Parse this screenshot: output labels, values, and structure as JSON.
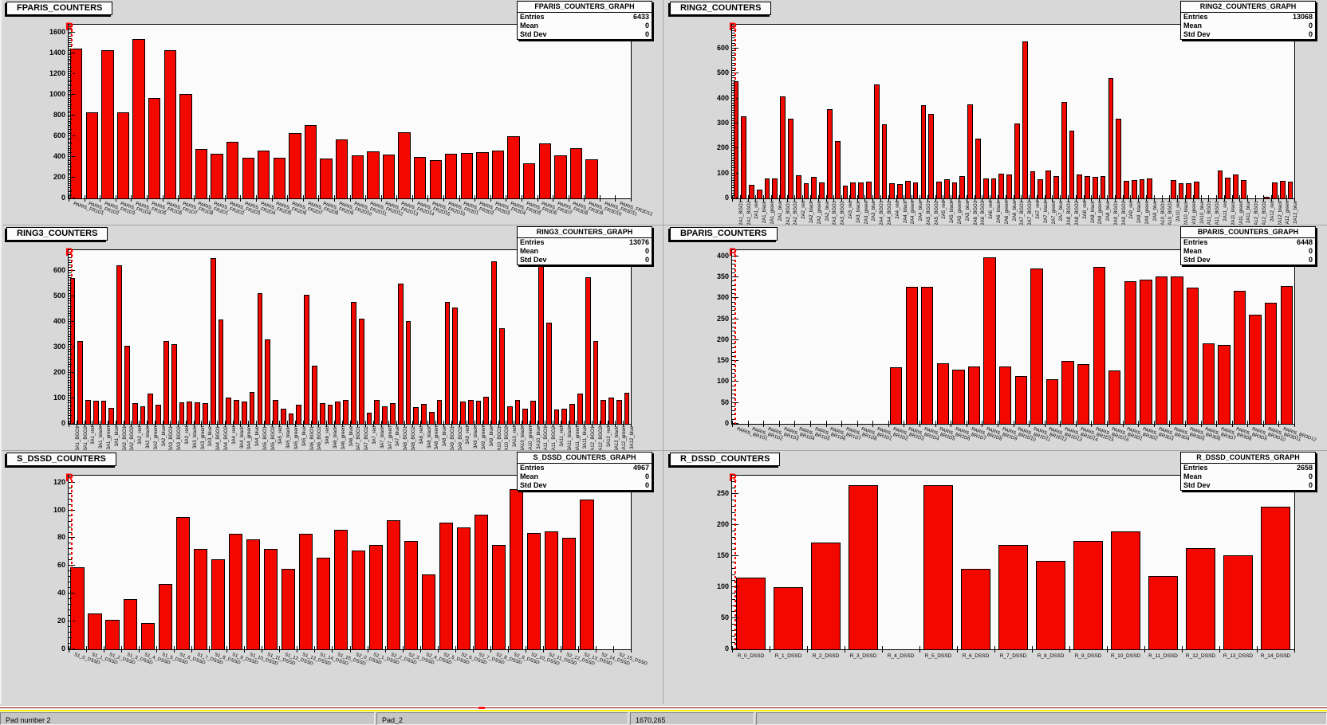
{
  "colors": {
    "bar_fill": "#f30800",
    "bar_border": "#000000",
    "marker_red": "#ff0000",
    "pad_background": "#d8d8d8",
    "frame_background": "#fbfbfb",
    "yellow_separator": "#f4ee00",
    "maroon_separator": "#8b0000"
  },
  "status_bar": {
    "cells": [
      "Pad number 2",
      "Pad_2",
      "1670,265",
      ""
    ]
  },
  "chart_data": [
    {
      "type": "bar",
      "title": "FPARIS_COUNTERS",
      "corner_marker": "R",
      "stats": {
        "title": "FPARIS_COUNTERS_GRAPH",
        "entries_label": "Entries",
        "entries": "6433",
        "mean_label": "Mean",
        "mean": "0",
        "stddev_label": "Std Dev",
        "stddev": "0"
      },
      "xlabel": "",
      "ylabel": "",
      "ylim": [
        0,
        1675
      ],
      "yticks": [
        0,
        200,
        400,
        600,
        800,
        1000,
        1200,
        1400,
        1600
      ],
      "minor_step": 20,
      "labels_orientation": "slant",
      "categories": [
        "PARIS_FR1D1",
        "PARIS_FR1D2",
        "PARIS_FR1D3",
        "PARIS_FR1D4",
        "PARIS_FR1D5",
        "PARIS_FR1D6",
        "PARIS_FR1D7",
        "PARIS_FR1D8",
        "PARIS_FR2D1",
        "PARIS_FR2D2",
        "PARIS_FR2D3",
        "PARIS_FR2D4",
        "PARIS_FR2D5",
        "PARIS_FR2D6",
        "PARIS_FR2D7",
        "PARIS_FR2D8",
        "PARIS_FR2D9",
        "PARIS_FR2D10",
        "PARIS_FR2D11",
        "PARIS_FR2D12",
        "PARIS_FR2D13",
        "PARIS_FR2D14",
        "PARIS_FR2D15",
        "PARIS_FR2D16",
        "PARIS_FR3D1",
        "PARIS_FR3D2",
        "PARIS_FR3D3",
        "PARIS_FR3D4",
        "PARIS_FR3D5",
        "PARIS_FR3D6",
        "PARIS_FR3D7",
        "PARIS_FR3D8",
        "PARIS_FR3D9",
        "PARIS_FR3D10",
        "PARIS_FR3D11",
        "PARIS_FR3D12"
      ],
      "values": [
        1448,
        828,
        1432,
        828,
        1540,
        965,
        1432,
        1008,
        475,
        428,
        545,
        393,
        460,
        393,
        628,
        705,
        388,
        572,
        413,
        455,
        420,
        635,
        400,
        368,
        428,
        440,
        448,
        462,
        600,
        340,
        530,
        413,
        483,
        375,
        0,
        0
      ]
    },
    {
      "type": "bar",
      "title": "RING2_COUNTERS",
      "corner_marker": "R",
      "stats": {
        "title": "RING2_COUNTERS_GRAPH",
        "entries_label": "Entries",
        "entries": "13068",
        "mean_label": "Mean",
        "mean": "0",
        "stddev_label": "Std Dev",
        "stddev": "0"
      },
      "xlabel": "",
      "ylabel": "",
      "ylim": [
        0,
        695
      ],
      "yticks": [
        0,
        100,
        200,
        300,
        400,
        500,
        600
      ],
      "minor_step": 10,
      "labels_orientation": "vertical",
      "categories": [
        "2A1_BGO1",
        "2A1_BGO2",
        "2A1_red",
        "2A1_black",
        "2A1_green",
        "2A1_blue",
        "2A2_BGO1",
        "2A2_BGO2",
        "2A2_red",
        "2A2_black",
        "2A2_green",
        "2A2_blue",
        "2A3_BGO1",
        "2A3_BGO2",
        "2A3_red",
        "2A3_black",
        "2A3_green",
        "2A3_blue",
        "2A4_BGO1",
        "2A4_BGO2",
        "2A4_red",
        "2A4_black",
        "2A4_green",
        "2A4_blue",
        "2A5_BGO1",
        "2A5_BGO2",
        "2A5_red",
        "2A5_black",
        "2A5_green",
        "2A5_blue",
        "2A6_BGO1",
        "2A6_BGO2",
        "2A6_red",
        "2A6_black",
        "2A6_green",
        "2A6_blue",
        "2A7_BGO1",
        "2A7_BGO2",
        "2A7_red",
        "2A7_black",
        "2A7_green",
        "2A7_blue",
        "2A8_BGO1",
        "2A8_BGO2",
        "2A8_red",
        "2A8_black",
        "2A8_green",
        "2A8_blue",
        "2A9_BGO1",
        "2A9_BGO2",
        "2A9_red",
        "2A9_black",
        "2A9_green",
        "2A9_blue",
        "2A10_BGO1",
        "2A10_BGO2",
        "2A10_red",
        "2A10_black",
        "2A10_green",
        "2A10_blue",
        "2A11_BGO1",
        "2A11_BGO2",
        "2A11_red",
        "2A11_black",
        "2A11_green",
        "2A11_blue",
        "2A12_BGO1",
        "2A12_BGO2",
        "2A12_red",
        "2A12_black",
        "2A12_green",
        "2A12_blue"
      ],
      "values": [
        468,
        328,
        55,
        35,
        80,
        80,
        408,
        318,
        92,
        62,
        85,
        63,
        358,
        228,
        52,
        63,
        65,
        68,
        455,
        295,
        60,
        57,
        70,
        65,
        372,
        338,
        67,
        77,
        65,
        88,
        377,
        240,
        80,
        80,
        98,
        97,
        300,
        628,
        108,
        77,
        113,
        88,
        385,
        272,
        96,
        88,
        87,
        88,
        483,
        320,
        70,
        72,
        75,
        80,
        0,
        0,
        72,
        62,
        62,
        68,
        0,
        0,
        113,
        82,
        96,
        72,
        0,
        0,
        8,
        65,
        70,
        68
      ]
    },
    {
      "type": "bar",
      "title": "RING3_COUNTERS",
      "corner_marker": "R",
      "stats": {
        "title": "RING3_COUNTERS_GRAPH",
        "entries_label": "Entries",
        "entries": "13076",
        "mean_label": "Mean",
        "mean": "0",
        "stddev_label": "Std Dev",
        "stddev": "0"
      },
      "xlabel": "",
      "ylabel": "",
      "ylim": [
        0,
        680
      ],
      "yticks": [
        0,
        100,
        200,
        300,
        400,
        500,
        600
      ],
      "minor_step": 10,
      "labels_orientation": "vertical",
      "categories": [
        "3A1_BGO1",
        "3A1_BGO2",
        "3A1_red",
        "3A1_black",
        "3A1_green",
        "3A1_blue",
        "3A2_BGO1",
        "3A2_BGO2",
        "3A2_red",
        "3A2_black",
        "3A2_green",
        "3A2_blue",
        "3A3_BGO1",
        "3A3_BGO2",
        "3A3_red",
        "3A3_black",
        "3A3_green",
        "3A3_blue",
        "3A4_BGO1",
        "3A4_BGO2",
        "3A4_red",
        "3A4_black",
        "3A4_green",
        "3A4_blue",
        "3A5_BGO1",
        "3A5_BGO2",
        "3A5_red",
        "3A5_black",
        "3A5_green",
        "3A5_blue",
        "3A6_BGO1",
        "3A6_BGO2",
        "3A6_red",
        "3A6_black",
        "3A6_green",
        "3A6_blue",
        "3A7_BGO1",
        "3A7_BGO2",
        "3A7_red",
        "3A7_black",
        "3A7_green",
        "3A7_blue",
        "3A8_BGO1",
        "3A8_BGO2",
        "3A8_red",
        "3A8_black",
        "3A8_green",
        "3A8_blue",
        "3A9_BGO1",
        "3A9_BGO2",
        "3A9_red",
        "3A9_black",
        "3A9_green",
        "3A9_blue",
        "3A10_BGO1",
        "3A10_BGO2",
        "3A10_red",
        "3A10_black",
        "3A10_green",
        "3A10_blue",
        "3A11_BGO1",
        "3A11_BGO2",
        "3A11_red",
        "3A11_black",
        "3A11_green",
        "3A11_blue",
        "3A12_BGO1",
        "3A12_BGO2",
        "3A12_red",
        "3A12_black",
        "3A12_green",
        "3A12_blue"
      ],
      "values": [
        570,
        325,
        95,
        90,
        92,
        62,
        620,
        305,
        80,
        68,
        118,
        75,
        325,
        313,
        85,
        88,
        83,
        80,
        650,
        410,
        103,
        95,
        88,
        125,
        513,
        330,
        95,
        58,
        40,
        75,
        505,
        228,
        80,
        75,
        88,
        95,
        477,
        412,
        45,
        95,
        70,
        82,
        548,
        402,
        65,
        78,
        48,
        95,
        477,
        455,
        88,
        95,
        90,
        105,
        635,
        375,
        70,
        95,
        60,
        92,
        635,
        395,
        55,
        60,
        78,
        118,
        575,
        325,
        95,
        102,
        95,
        122
      ]
    },
    {
      "type": "bar",
      "title": "BPARIS_COUNTERS",
      "corner_marker": "R",
      "stats": {
        "title": "BPARIS_COUNTERS_GRAPH",
        "entries_label": "Entries",
        "entries": "6448",
        "mean_label": "Mean",
        "mean": "0",
        "stddev_label": "Std Dev",
        "stddev": "0"
      },
      "xlabel": "",
      "ylabel": "",
      "ylim": [
        0,
        415
      ],
      "yticks": [
        0,
        50,
        100,
        150,
        200,
        250,
        300,
        350,
        400
      ],
      "minor_step": 10,
      "labels_orientation": "slant",
      "categories": [
        "PARIS_BR1D1",
        "PARIS_BR1D2",
        "PARIS_BR1D3",
        "PARIS_BR1D4",
        "PARIS_BR1D5",
        "PARIS_BR1D6",
        "PARIS_BR1D7",
        "PARIS_BR1D8",
        "PARIS_BR2D1",
        "PARIS_BR2D2",
        "PARIS_BR2D3",
        "PARIS_BR2D4",
        "PARIS_BR2D5",
        "PARIS_BR2D6",
        "PARIS_BR2D7",
        "PARIS_BR2D8",
        "PARIS_BR2D9",
        "PARIS_BR2D10",
        "PARIS_BR2D11",
        "PARIS_BR2D12",
        "PARIS_BR2D13",
        "PARIS_BR2D14",
        "PARIS_BR2D15",
        "PARIS_BR2D16",
        "PARIS_BR3D1",
        "PARIS_BR3D2",
        "PARIS_BR3D3",
        "PARIS_BR3D4",
        "PARIS_BR3D5",
        "PARIS_BR3D6",
        "PARIS_BR3D7",
        "PARIS_BR3D8",
        "PARIS_BR3D9",
        "PARIS_BR3D10",
        "PARIS_BR3D11",
        "PARIS_BR3D12"
      ],
      "values": [
        0,
        0,
        0,
        0,
        0,
        0,
        0,
        0,
        0,
        0,
        135,
        328,
        328,
        145,
        130,
        137,
        398,
        137,
        115,
        372,
        107,
        150,
        143,
        375,
        127,
        340,
        345,
        352,
        352,
        325,
        192,
        188,
        318,
        260,
        290,
        330
      ]
    },
    {
      "type": "bar",
      "title": "S_DSSD_COUNTERS",
      "corner_marker": "R",
      "stats": {
        "title": "S_DSSD_COUNTERS_GRAPH",
        "entries_label": "Entries",
        "entries": "4967",
        "mean_label": "Mean",
        "mean": "0",
        "stddev_label": "Std Dev",
        "stddev": "0"
      },
      "xlabel": "",
      "ylabel": "",
      "ylim": [
        0,
        125
      ],
      "yticks": [
        0,
        20,
        40,
        60,
        80,
        100,
        120
      ],
      "minor_step": 4,
      "labels_orientation": "slant",
      "categories": [
        "S1_0_DSSD",
        "S1_1_DSSD",
        "S1_2_DSSD",
        "S1_3_DSSD",
        "S1_4_DSSD",
        "S1_5_DSSD",
        "S1_6_DSSD",
        "S1_7_DSSD",
        "S1_8_DSSD",
        "S1_9_DSSD",
        "S1_10_DSSD",
        "S1_11_DSSD",
        "S1_12_DSSD",
        "S1_13_DSSD",
        "S1_14_DSSD",
        "S1_15_DSSD",
        "S2_0_DSSD",
        "S2_1_DSSD",
        "S2_2_DSSD",
        "S2_3_DSSD",
        "S2_4_DSSD",
        "S2_5_DSSD",
        "S2_6_DSSD",
        "S2_7_DSSD",
        "S2_8_DSSD",
        "S2_9_DSSD",
        "S2_10_DSSD",
        "S2_11_DSSD",
        "S2_12_DSSD",
        "S2_13_DSSD",
        "S2_14_DSSD",
        "S2_15_DSSD"
      ],
      "values": [
        59,
        26,
        21,
        36,
        19,
        47,
        95,
        72,
        65,
        83,
        79,
        72,
        58,
        83,
        66,
        86,
        71,
        75,
        93,
        78,
        54,
        91,
        88,
        97,
        75,
        115,
        84,
        85,
        80,
        108,
        0,
        0
      ]
    },
    {
      "type": "bar",
      "title": "R_DSSD_COUNTERS",
      "corner_marker": "R",
      "stats": {
        "title": "R_DSSD_COUNTERS_GRAPH",
        "entries_label": "Entries",
        "entries": "2658",
        "mean_label": "Mean",
        "mean": "0",
        "stddev_label": "Std Dev",
        "stddev": "0"
      },
      "xlabel": "",
      "ylabel": "",
      "ylim": [
        0,
        280
      ],
      "yticks": [
        0,
        50,
        100,
        150,
        200,
        250
      ],
      "minor_step": 10,
      "labels_orientation": "horizontal",
      "categories": [
        "R_0_DSSD",
        "R_1_DSSD",
        "R_2_DSSD",
        "R_3_DSSD",
        "R_4_DSSD",
        "R_5_DSSD",
        "R_6_DSSD",
        "R_7_DSSD",
        "R_8_DSSD",
        "R_9_DSSD",
        "R_10_DSSD",
        "R_11_DSSD",
        "R_12_DSSD",
        "R_13_DSSD",
        "R_14_DSSD"
      ],
      "values": [
        115,
        100,
        172,
        265,
        0,
        265,
        130,
        168,
        143,
        175,
        190,
        118,
        163,
        152,
        230
      ]
    }
  ]
}
